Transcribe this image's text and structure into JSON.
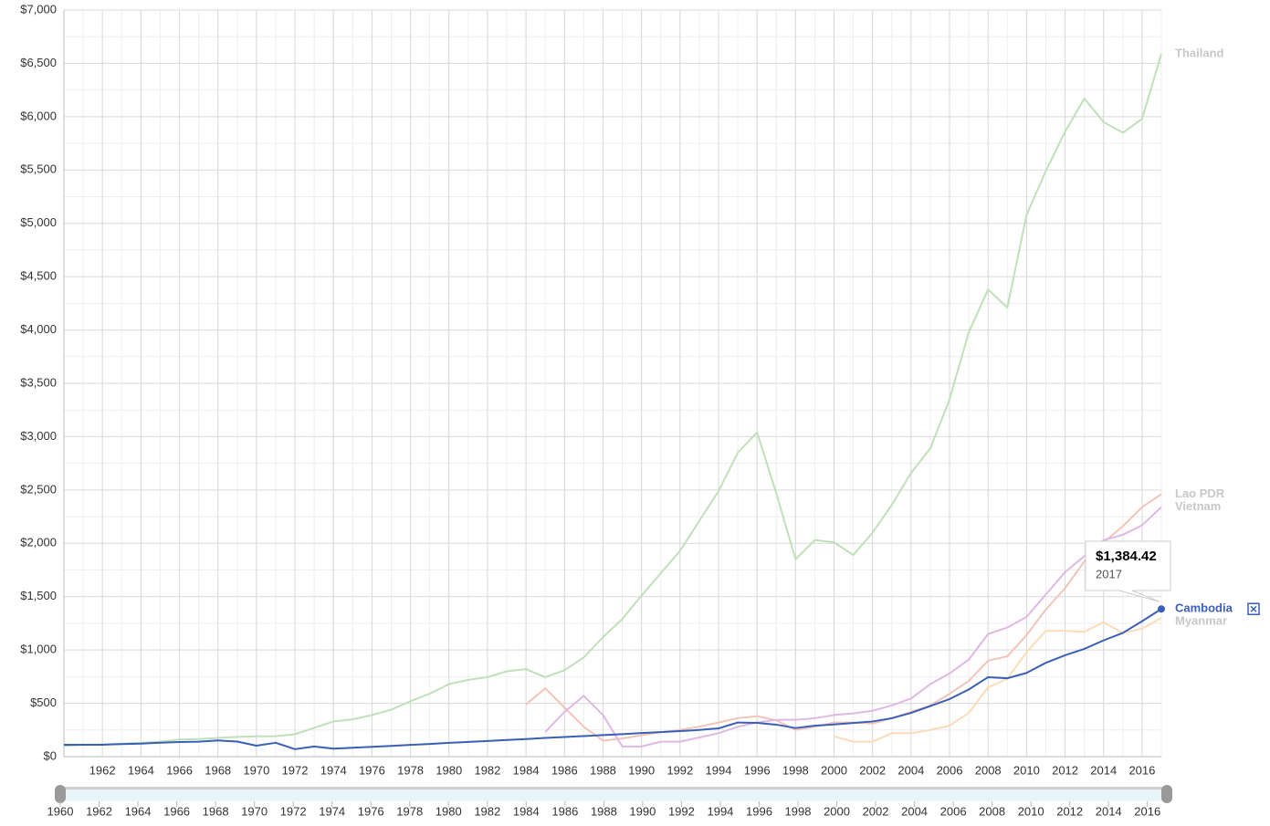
{
  "chart_data": {
    "type": "line",
    "x": [
      1960,
      1961,
      1962,
      1963,
      1964,
      1965,
      1966,
      1967,
      1968,
      1969,
      1970,
      1971,
      1972,
      1973,
      1974,
      1975,
      1976,
      1977,
      1978,
      1979,
      1980,
      1981,
      1982,
      1983,
      1984,
      1985,
      1986,
      1987,
      1988,
      1989,
      1990,
      1991,
      1992,
      1993,
      1994,
      1995,
      1996,
      1997,
      1998,
      1999,
      2000,
      2001,
      2002,
      2003,
      2004,
      2005,
      2006,
      2007,
      2008,
      2009,
      2010,
      2011,
      2012,
      2013,
      2014,
      2015,
      2016,
      2017
    ],
    "xlim": [
      1960,
      2017
    ],
    "xticks": [
      1962,
      1964,
      1966,
      1968,
      1970,
      1972,
      1974,
      1976,
      1978,
      1980,
      1982,
      1984,
      1986,
      1988,
      1990,
      1992,
      1994,
      1996,
      1998,
      2000,
      2002,
      2004,
      2006,
      2008,
      2010,
      2012,
      2014,
      2016
    ],
    "slider_ticks": [
      1960,
      1962,
      1964,
      1966,
      1968,
      1970,
      1972,
      1974,
      1976,
      1978,
      1980,
      1982,
      1984,
      1986,
      1988,
      1990,
      1992,
      1994,
      1996,
      1998,
      2000,
      2002,
      2004,
      2006,
      2008,
      2010,
      2012,
      2014,
      2016
    ],
    "ylim": [
      0,
      7000
    ],
    "yticks": [
      {
        "value": 0,
        "label": "$0"
      },
      {
        "value": 500,
        "label": "$500"
      },
      {
        "value": 1000,
        "label": "$1,000"
      },
      {
        "value": 1500,
        "label": "$1,500"
      },
      {
        "value": 2000,
        "label": "$2,000"
      },
      {
        "value": 2500,
        "label": "$2,500"
      },
      {
        "value": 3000,
        "label": "$3,000"
      },
      {
        "value": 3500,
        "label": "$3,500"
      },
      {
        "value": 4000,
        "label": "$4,000"
      },
      {
        "value": 4500,
        "label": "$4,500"
      },
      {
        "value": 5000,
        "label": "$5,000"
      },
      {
        "value": 5500,
        "label": "$5,500"
      },
      {
        "value": 6000,
        "label": "$6,000"
      },
      {
        "value": 6500,
        "label": "$6,500"
      },
      {
        "value": 7000,
        "label": "$7,000"
      }
    ],
    "grid": true,
    "series": [
      {
        "name": "Thailand",
        "color": "#bfe0b8",
        "label_color": "#c8c8c8",
        "values": [
          100,
          110,
          115,
          122,
          130,
          140,
          160,
          165,
          175,
          185,
          190,
          192,
          210,
          270,
          330,
          350,
          390,
          440,
          520,
          590,
          680,
          720,
          745,
          800,
          820,
          745,
          810,
          930,
          1120,
          1290,
          1510,
          1720,
          1930,
          2210,
          2490,
          2850,
          3040,
          2470,
          1850,
          2030,
          2010,
          1890,
          2100,
          2360,
          2660,
          2890,
          3350,
          3980,
          4380,
          4210,
          5080,
          5490,
          5860,
          6170,
          5950,
          5850,
          5980,
          6590
        ]
      },
      {
        "name": "Lao PDR",
        "color": "#f2c4b8",
        "label_color": "#c8c8c8",
        "values": [
          null,
          null,
          null,
          null,
          null,
          null,
          null,
          null,
          null,
          null,
          null,
          null,
          null,
          null,
          null,
          null,
          null,
          null,
          null,
          null,
          null,
          null,
          null,
          null,
          490,
          640,
          460,
          280,
          150,
          170,
          200,
          230,
          250,
          280,
          320,
          360,
          380,
          340,
          250,
          280,
          320,
          320,
          310,
          360,
          420,
          480,
          590,
          710,
          900,
          940,
          1140,
          1380,
          1580,
          1830,
          2010,
          2160,
          2340,
          2460
        ]
      },
      {
        "name": "Vietnam",
        "color": "#dfb8e4",
        "label_color": "#c8c8c8",
        "values": [
          null,
          null,
          null,
          null,
          null,
          null,
          null,
          null,
          null,
          null,
          null,
          null,
          null,
          null,
          null,
          null,
          null,
          null,
          null,
          null,
          null,
          null,
          null,
          null,
          null,
          230,
          420,
          570,
          390,
          95,
          95,
          140,
          140,
          180,
          220,
          280,
          320,
          345,
          345,
          360,
          390,
          405,
          430,
          480,
          545,
          680,
          780,
          910,
          1150,
          1210,
          1310,
          1520,
          1730,
          1880,
          2030,
          2080,
          2170,
          2340
        ]
      },
      {
        "name": "Myanmar",
        "color": "#fbdcb8",
        "label_color": "#c8c8c8",
        "values": [
          null,
          null,
          null,
          null,
          null,
          null,
          null,
          null,
          null,
          null,
          null,
          null,
          null,
          null,
          null,
          null,
          null,
          null,
          null,
          null,
          null,
          null,
          null,
          null,
          null,
          null,
          null,
          null,
          null,
          null,
          null,
          null,
          null,
          null,
          null,
          null,
          null,
          null,
          null,
          null,
          190,
          140,
          140,
          220,
          220,
          250,
          290,
          410,
          650,
          730,
          980,
          1180,
          1180,
          1170,
          1260,
          1160,
          1200,
          1300
        ]
      },
      {
        "name": "Cambodia",
        "color": "#3a5fb8",
        "label_color": "#3a5fb8",
        "values": [
          111,
          111,
          111,
          118,
          122,
          131,
          137,
          140,
          152,
          141,
          103,
          130,
          70,
          95,
          75,
          83,
          92,
          101,
          110,
          119,
          129,
          138,
          147,
          156,
          165,
          175,
          184,
          193,
          202,
          211,
          221,
          230,
          240,
          250,
          265,
          320,
          317,
          300,
          268,
          290,
          302,
          316,
          330,
          360,
          410,
          474,
          540,
          630,
          745,
          735,
          785,
          880,
          950,
          1010,
          1090,
          1160,
          1270,
          1384.42
        ]
      }
    ],
    "tooltip": {
      "value_label": "$1,384.42",
      "x_label": "2017"
    }
  }
}
